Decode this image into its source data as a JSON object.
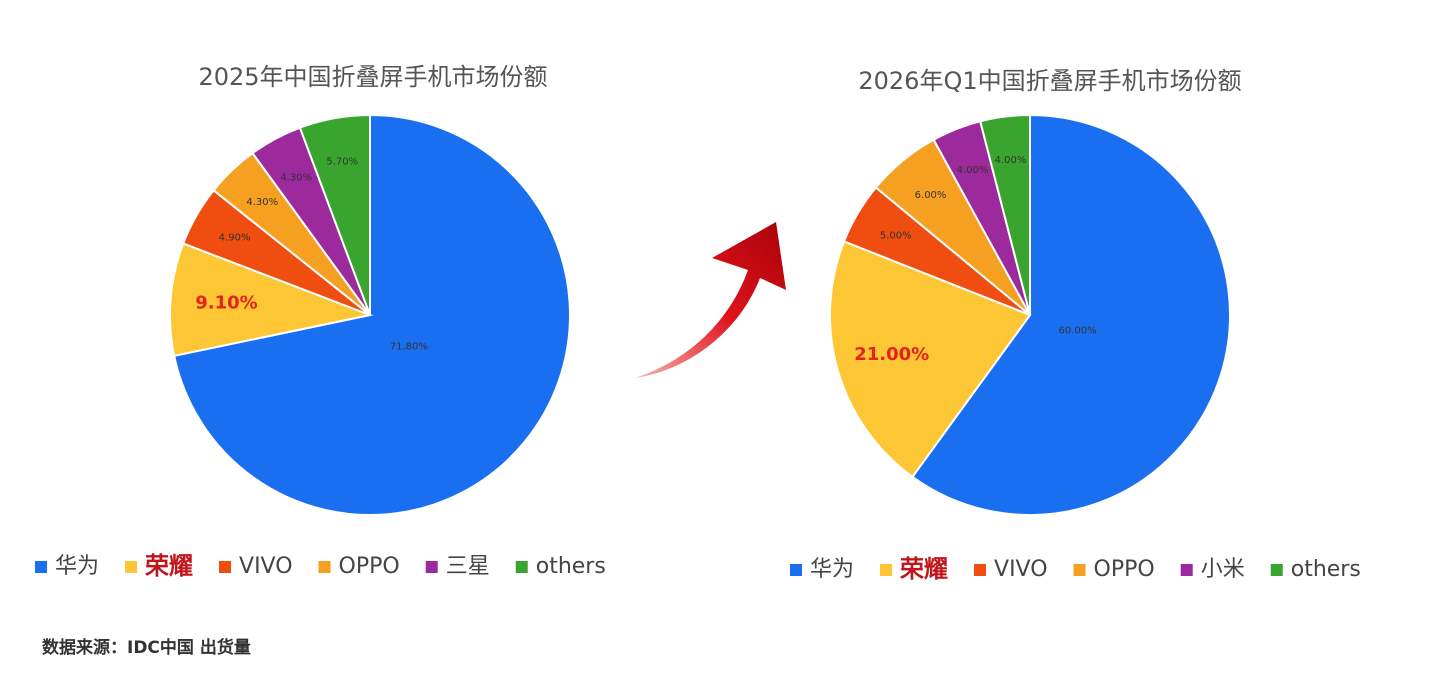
{
  "chart_data": [
    {
      "type": "pie",
      "title": "2025年中国折叠屏手机市场份额",
      "categories": [
        "华为",
        "荣耀",
        "VIVO",
        "OPPO",
        "三星",
        "others"
      ],
      "values": [
        71.8,
        9.1,
        4.9,
        4.3,
        4.3,
        5.7
      ],
      "value_labels": [
        "71.80%",
        "9.10%",
        "4.90%",
        "4.30%",
        "4.30%",
        "5.70%"
      ],
      "colors": [
        "#1a6ef0",
        "#fcc634",
        "#f04e10",
        "#f5a020",
        "#9c2a9c",
        "#3aa52e"
      ]
    },
    {
      "type": "pie",
      "title": "2026年Q1中国折叠屏手机市场份额",
      "categories": [
        "华为",
        "荣耀",
        "VIVO",
        "OPPO",
        "小米",
        "others"
      ],
      "values": [
        60,
        21,
        5,
        6,
        4,
        4
      ],
      "value_labels": [
        "60.00%",
        "21.00%",
        "5.00%",
        "6.00%",
        "4.00%",
        "4.00%"
      ],
      "colors": [
        "#1a6ef0",
        "#fcc634",
        "#f04e10",
        "#f5a020",
        "#9c2a9c",
        "#3aa52e"
      ]
    }
  ],
  "source": "数据来源：IDC中国 出货量"
}
